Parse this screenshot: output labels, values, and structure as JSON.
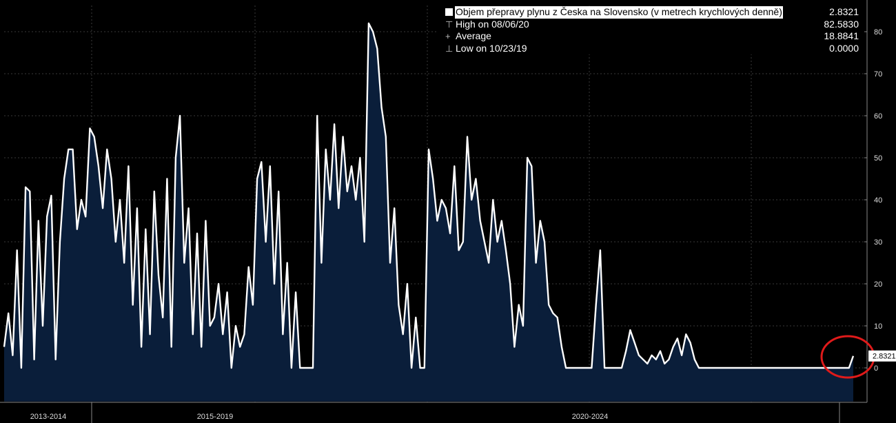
{
  "legend": {
    "series_label": "Objem přepravy plynu z Česka na Slovensko (v metrech krychlových denně)",
    "series_value": "2.8321",
    "high_label": "High on 08/06/20",
    "high_value": "82.5830",
    "average_label": "Average",
    "average_value": "18.8841",
    "low_label": "Low on 10/23/19",
    "low_value": "0.0000"
  },
  "last_value_tag": "2.8321",
  "colors": {
    "background": "#000000",
    "area_fill": "#0a1e3a",
    "line": "#ffffff",
    "highlight_circle": "#e01a1a"
  },
  "chart_data": {
    "type": "area",
    "ylim": [
      -8,
      88
    ],
    "y_ticks": [
      "0",
      "10",
      "20",
      "30",
      "40",
      "50",
      "60",
      "70",
      "80"
    ],
    "x_period_labels": [
      "2013-2014",
      "2015-2019",
      "2020-2024"
    ],
    "series": [
      {
        "name": "Objem přepravy plynu z Česka na Slovensko (v metrech krychlových denně)",
        "approx_values": [
          5,
          13,
          3,
          28,
          0,
          43,
          42,
          2,
          35,
          10,
          36,
          41,
          2,
          30,
          45,
          52,
          52,
          33,
          40,
          36,
          57,
          55,
          48,
          38,
          52,
          45,
          30,
          40,
          25,
          48,
          15,
          38,
          5,
          33,
          8,
          42,
          22,
          12,
          45,
          5,
          50,
          60,
          25,
          38,
          8,
          32,
          5,
          35,
          10,
          12,
          20,
          8,
          18,
          0,
          10,
          5,
          8,
          24,
          15,
          45,
          49,
          30,
          48,
          20,
          42,
          8,
          25,
          0,
          18,
          0,
          0,
          0,
          0,
          60,
          25,
          52,
          40,
          58,
          38,
          55,
          42,
          48,
          40,
          50,
          30,
          82,
          80,
          76,
          62,
          55,
          25,
          38,
          15,
          8,
          20,
          0,
          12,
          0,
          0,
          52,
          45,
          35,
          40,
          38,
          32,
          48,
          28,
          30,
          55,
          40,
          45,
          35,
          30,
          25,
          40,
          30,
          35,
          28,
          20,
          5,
          15,
          10,
          50,
          48,
          25,
          35,
          30,
          15,
          13,
          12,
          5,
          0,
          0,
          0,
          0,
          0,
          0,
          0,
          15,
          28,
          0,
          0,
          0,
          0,
          0,
          4,
          9,
          6,
          3,
          2,
          1,
          3,
          2,
          4,
          1,
          2,
          5,
          7,
          3,
          8,
          6,
          2,
          0,
          0,
          0,
          0,
          0,
          0,
          0,
          0,
          0,
          0,
          0,
          0,
          0,
          0,
          0,
          0,
          0,
          0,
          0,
          0,
          0,
          0,
          0,
          0,
          0,
          0,
          0,
          0,
          0,
          0,
          0,
          0,
          0,
          0,
          0,
          0,
          2.8321
        ]
      }
    ],
    "high": 82.583,
    "high_date": "08/06/20",
    "average": 18.8841,
    "low": 0.0,
    "low_date": "10/23/19",
    "last": 2.8321,
    "grid": true,
    "legend_position": "top-right",
    "annotation": "red circle around the last value"
  }
}
